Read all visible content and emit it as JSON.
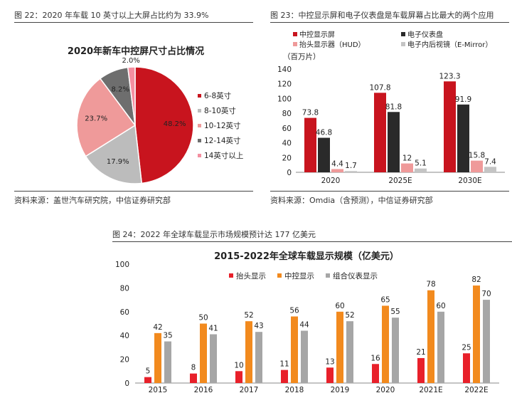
{
  "figure22": {
    "caption": "图 22：2020 年车载 10 英寸以上大屏占比约为 33.9%",
    "source": "资料来源：盖世汽车研究院，中信证券研究部"
  },
  "figure23": {
    "caption": "图 23：中控显示屏和电子仪表盘是车载屏幕占比最大的两个应用",
    "source": "资料来源：Omdia（含预测），中信证券研究部"
  },
  "figure24": {
    "caption": "图 24：2022 年全球车载显示市场规模预计达 177 亿美元"
  },
  "colors": {
    "red": "#c8141e",
    "gray": "#bcbcbc",
    "pink": "#ef9a9a",
    "darkgray": "#6e6e6e",
    "lightpink": "#f48fa0",
    "black": "#2a2a2a",
    "lightgray": "#c4c4c4",
    "orange": "#f28a1e",
    "red2": "#e8202a",
    "gray3": "#a6a6a6"
  },
  "chart_data": [
    {
      "type": "pie",
      "title": "2020年新车中控屏尺寸占比情况",
      "labels": [
        "6-8英寸",
        "8-10英寸",
        "10-12英寸",
        "12-14英寸",
        "14英寸以上"
      ],
      "values": [
        48.2,
        17.9,
        23.7,
        8.2,
        2.0
      ],
      "value_labels": [
        "48.2%",
        "17.9%",
        "23.7%",
        "8.2%",
        "2.0%"
      ],
      "legend": "right"
    },
    {
      "type": "bar",
      "title": "",
      "ylabel": "（百万片）",
      "categories": [
        "2020",
        "2025E",
        "2030E"
      ],
      "series": [
        {
          "name": "中控显示屏",
          "values": [
            73.8,
            107.8,
            123.3
          ]
        },
        {
          "name": "电子仪表盘",
          "values": [
            46.8,
            81.8,
            91.9
          ]
        },
        {
          "name": "抬头显示器（HUD）",
          "values": [
            4.4,
            12,
            15.8
          ]
        },
        {
          "name": "电子内后视镜（E-Mirror）",
          "values": [
            1.7,
            5.1,
            7.4
          ]
        }
      ],
      "value_labels": [
        [
          "73.8",
          "107.8",
          "123.3"
        ],
        [
          "46.8",
          "81.8",
          "91.9"
        ],
        [
          "4.4",
          "12",
          "15.8"
        ],
        [
          "1.7",
          "5.1",
          "7.4"
        ]
      ],
      "ylim": [
        0,
        140
      ],
      "yticks": [
        "0",
        "20",
        "40",
        "60",
        "80",
        "100",
        "120",
        "140"
      ],
      "legend": "top",
      "grid": false
    },
    {
      "type": "bar",
      "title": "2015-2022年全球车载显示规模（亿美元）",
      "categories": [
        "2015",
        "2016",
        "2017",
        "2018",
        "2019",
        "2020",
        "2021E",
        "2022E"
      ],
      "series": [
        {
          "name": "抬头显示",
          "values": [
            5,
            8,
            10,
            11,
            13,
            16,
            21,
            25
          ]
        },
        {
          "name": "中控显示",
          "values": [
            42,
            50,
            52,
            56,
            60,
            65,
            78,
            82
          ]
        },
        {
          "name": "组合仪表显示",
          "values": [
            35,
            41,
            43,
            44,
            52,
            55,
            60,
            70
          ]
        }
      ],
      "value_labels": [
        [
          "5",
          "8",
          "10",
          "11",
          "13",
          "16",
          "21",
          "25"
        ],
        [
          "42",
          "50",
          "52",
          "56",
          "60",
          "65",
          "78",
          "82"
        ],
        [
          "35",
          "41",
          "43",
          "44",
          "52",
          "55",
          "60",
          "70"
        ]
      ],
      "ylim": [
        0,
        100
      ],
      "yticks": [
        "0",
        "20",
        "40",
        "60",
        "80",
        "100"
      ],
      "legend": "top",
      "grid": false
    }
  ]
}
